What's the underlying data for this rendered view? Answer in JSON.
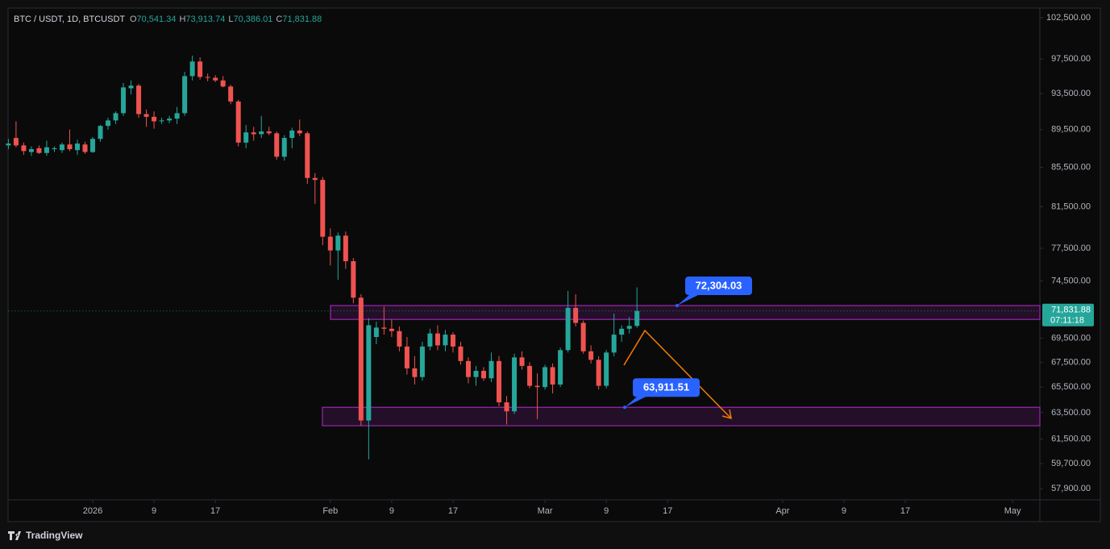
{
  "chart_data": {
    "type": "candlestick",
    "header": {
      "symbol": "BTC / USDT, 1D, BTCUSDT",
      "ohlc": [
        {
          "key": "O",
          "value": "70,541.34"
        },
        {
          "key": "H",
          "value": "73,913.74"
        },
        {
          "key": "L",
          "value": "70,386.01"
        },
        {
          "key": "C",
          "value": "71,831.88"
        }
      ]
    },
    "x": [
      "2025-12-21",
      "2025-12-22",
      "2025-12-23",
      "2025-12-24",
      "2025-12-25",
      "2025-12-26",
      "2025-12-27",
      "2025-12-28",
      "2025-12-29",
      "2025-12-30",
      "2025-12-31",
      "2026-01-01",
      "2026-01-02",
      "2026-01-03",
      "2026-01-04",
      "2026-01-05",
      "2026-01-06",
      "2026-01-07",
      "2026-01-08",
      "2026-01-09",
      "2026-01-10",
      "2026-01-11",
      "2026-01-12",
      "2026-01-13",
      "2026-01-14",
      "2026-01-15",
      "2026-01-16",
      "2026-01-17",
      "2026-01-18",
      "2026-01-19",
      "2026-01-20",
      "2026-01-21",
      "2026-01-22",
      "2026-01-23",
      "2026-01-24",
      "2026-01-25",
      "2026-01-26",
      "2026-01-27",
      "2026-01-28",
      "2026-01-29",
      "2026-01-30",
      "2026-01-31",
      "2026-02-01",
      "2026-02-02",
      "2026-02-03",
      "2026-02-04",
      "2026-02-05",
      "2026-02-06",
      "2026-02-07",
      "2026-02-08",
      "2026-02-09",
      "2026-02-10",
      "2026-02-11",
      "2026-02-12",
      "2026-02-13",
      "2026-02-14",
      "2026-02-15",
      "2026-02-16",
      "2026-02-17",
      "2026-02-18",
      "2026-02-19",
      "2026-02-20",
      "2026-02-21",
      "2026-02-22",
      "2026-02-23",
      "2026-02-24",
      "2026-02-25",
      "2026-02-26",
      "2026-02-27",
      "2026-02-28",
      "2026-03-01",
      "2026-03-02",
      "2026-03-03",
      "2026-03-04",
      "2026-03-05",
      "2026-03-06",
      "2026-03-07",
      "2026-03-08",
      "2026-03-09",
      "2026-03-10",
      "2026-03-11",
      "2026-03-12",
      "2026-03-13"
    ],
    "open": [
      87800,
      88600,
      87800,
      87100,
      87500,
      87000,
      87400,
      87300,
      87900,
      87300,
      87900,
      87100,
      88500,
      89900,
      90500,
      91300,
      94100,
      94400,
      91200,
      90900,
      90400,
      90500,
      90700,
      91300,
      95500,
      97200,
      95400,
      95300,
      95000,
      94300,
      92600,
      88100,
      89200,
      89000,
      89300,
      89100,
      86600,
      88600,
      89400,
      89100,
      84400,
      84200,
      78600,
      77300,
      78700,
      76300,
      73000,
      62900,
      69600,
      70400,
      70300,
      70100,
      68800,
      67000,
      66300,
      68800,
      69900,
      68900,
      69800,
      68800,
      67600,
      66300,
      66800,
      66200,
      67600,
      64300,
      63600,
      67900,
      67200,
      65600,
      65500,
      67100,
      65700,
      68500,
      72100,
      70800,
      68400,
      67700,
      65600,
      68300,
      69800,
      70300,
      70541.34
    ],
    "high": [
      88500,
      90400,
      88100,
      87700,
      87800,
      88300,
      87700,
      88100,
      89500,
      88400,
      88200,
      88700,
      90000,
      90800,
      91500,
      94700,
      95000,
      94600,
      91700,
      91500,
      90800,
      91000,
      92000,
      96000,
      97900,
      97700,
      95800,
      95600,
      95500,
      94500,
      92800,
      90000,
      89800,
      91000,
      89800,
      89300,
      88900,
      89700,
      90600,
      89300,
      84900,
      84500,
      79400,
      79000,
      79100,
      76600,
      73300,
      71200,
      70900,
      72200,
      71100,
      70500,
      69600,
      68000,
      69200,
      70300,
      70600,
      70200,
      70000,
      69200,
      67900,
      67200,
      67100,
      68300,
      68000,
      64800,
      68200,
      68400,
      67500,
      66600,
      67300,
      67400,
      68700,
      73600,
      73300,
      71000,
      68900,
      68000,
      68500,
      71600,
      70600,
      71300,
      73913.74
    ],
    "low": [
      87400,
      87600,
      86800,
      86700,
      86900,
      86700,
      87100,
      87000,
      87200,
      86800,
      86900,
      87000,
      88200,
      89500,
      90100,
      91000,
      93400,
      90800,
      89800,
      89600,
      90100,
      90200,
      90100,
      91000,
      95000,
      95100,
      94900,
      94800,
      94200,
      92300,
      87700,
      87500,
      88300,
      88600,
      88900,
      86300,
      86200,
      87500,
      88800,
      83800,
      81800,
      77800,
      75900,
      74600,
      75600,
      72500,
      62500,
      60000,
      69000,
      69800,
      69600,
      68400,
      66500,
      65700,
      66000,
      68500,
      68500,
      68400,
      68300,
      67300,
      65800,
      65600,
      66000,
      65900,
      64000,
      62600,
      63400,
      66900,
      65400,
      63000,
      65300,
      65000,
      65500,
      68300,
      70500,
      68200,
      67400,
      65300,
      65400,
      68000,
      69200,
      69900,
      70386.01
    ],
    "close": [
      88000,
      87800,
      87200,
      87400,
      87000,
      87600,
      87500,
      87900,
      87400,
      88000,
      87100,
      88500,
      89900,
      90500,
      91300,
      94200,
      94400,
      91200,
      90900,
      90400,
      90500,
      90700,
      91300,
      95500,
      97200,
      95400,
      95300,
      95000,
      94300,
      92600,
      88100,
      89200,
      89000,
      89300,
      89100,
      86600,
      88600,
      89400,
      89100,
      84400,
      84200,
      78600,
      77300,
      78700,
      76300,
      73000,
      62900,
      70600,
      70400,
      70300,
      70100,
      68800,
      67000,
      66300,
      68800,
      69900,
      68900,
      69800,
      68800,
      67600,
      66300,
      66800,
      66200,
      67600,
      64300,
      63600,
      67900,
      67200,
      65600,
      65500,
      67100,
      65700,
      68500,
      72100,
      70800,
      68400,
      67700,
      65600,
      68300,
      69800,
      70300,
      70540,
      71831.88
    ],
    "up_color": "#26a69a",
    "down_color": "#ef5350",
    "ylim": [
      57130,
      103710
    ],
    "log_scale": true,
    "grid": false,
    "xlim": [
      "2025-12-21",
      "2026-05-04"
    ],
    "yticks": [
      {
        "value": 102500,
        "label": "102,500.00"
      },
      {
        "value": 97500,
        "label": "97,500.00"
      },
      {
        "value": 93500,
        "label": "93,500.00"
      },
      {
        "value": 89500,
        "label": "89,500.00"
      },
      {
        "value": 85500,
        "label": "85,500.00"
      },
      {
        "value": 81500,
        "label": "81,500.00"
      },
      {
        "value": 77500,
        "label": "77,500.00"
      },
      {
        "value": 74500,
        "label": "74,500.00"
      },
      {
        "value": 69500,
        "label": "69,500.00"
      },
      {
        "value": 67500,
        "label": "67,500.00"
      },
      {
        "value": 65500,
        "label": "65,500.00"
      },
      {
        "value": 63500,
        "label": "63,500.00"
      },
      {
        "value": 61500,
        "label": "61,500.00"
      },
      {
        "value": 59700,
        "label": "59,700.00"
      },
      {
        "value": 57900,
        "label": "57,900.00"
      }
    ],
    "xticks": [
      {
        "value": "2026-01-01",
        "label": "2026"
      },
      {
        "value": "2026-01-09",
        "label": "9"
      },
      {
        "value": "2026-01-17",
        "label": "17"
      },
      {
        "value": "2026-02-01",
        "label": "Feb"
      },
      {
        "value": "2026-02-09",
        "label": "9"
      },
      {
        "value": "2026-02-17",
        "label": "17"
      },
      {
        "value": "2026-03-01",
        "label": "Mar"
      },
      {
        "value": "2026-03-09",
        "label": "9"
      },
      {
        "value": "2026-03-17",
        "label": "17"
      },
      {
        "value": "2026-04-01",
        "label": "Apr"
      },
      {
        "value": "2026-04-09",
        "label": "9"
      },
      {
        "value": "2026-04-17",
        "label": "17"
      },
      {
        "value": "2026-05-01",
        "label": "May"
      }
    ],
    "last_price": {
      "value": 71831.88,
      "label": "71,831.88",
      "countdown": "07:11:18"
    },
    "zones": [
      {
        "top": {
          "value": 72304.03,
          "label": "72,304.03"
        },
        "bottom": 71100,
        "color": "#9c27b0"
      },
      {
        "top": {
          "value": 63911.51,
          "label": "63,911.51"
        },
        "bottom": 62500,
        "color": "#9c27b0"
      }
    ],
    "brand": "TradingView"
  }
}
